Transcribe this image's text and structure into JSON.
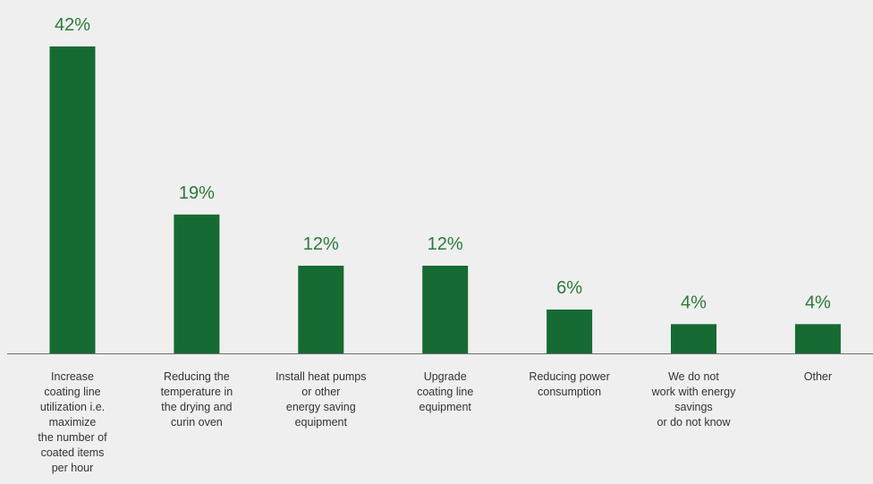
{
  "chart_data": {
    "type": "bar",
    "categories": [
      "Increase\ncoating line\nutilization i.e.\nmaximize\nthe number of\ncoated items\nper hour",
      "Reducing the\ntemperature in\nthe drying and\ncurin oven",
      "Install heat pumps\nor other\nenergy saving\nequipment",
      "Upgrade\ncoating line\nequipment",
      "Reducing power\nconsumption",
      "We do not\nwork with energy\nsavings\nor do not know",
      "Other"
    ],
    "values": [
      42,
      19,
      12,
      12,
      6,
      4,
      4
    ],
    "value_labels": [
      "42%",
      "19%",
      "12%",
      "12%",
      "6%",
      "4%",
      "4%"
    ],
    "unit": "%",
    "ylim": [
      0,
      46
    ],
    "grid": false,
    "legend": "none",
    "colors": {
      "bar": "#166b33",
      "value_label": "#2b7a3a",
      "axis": "#6f6f6f",
      "category_text": "#333333",
      "background": "#efefef"
    }
  }
}
